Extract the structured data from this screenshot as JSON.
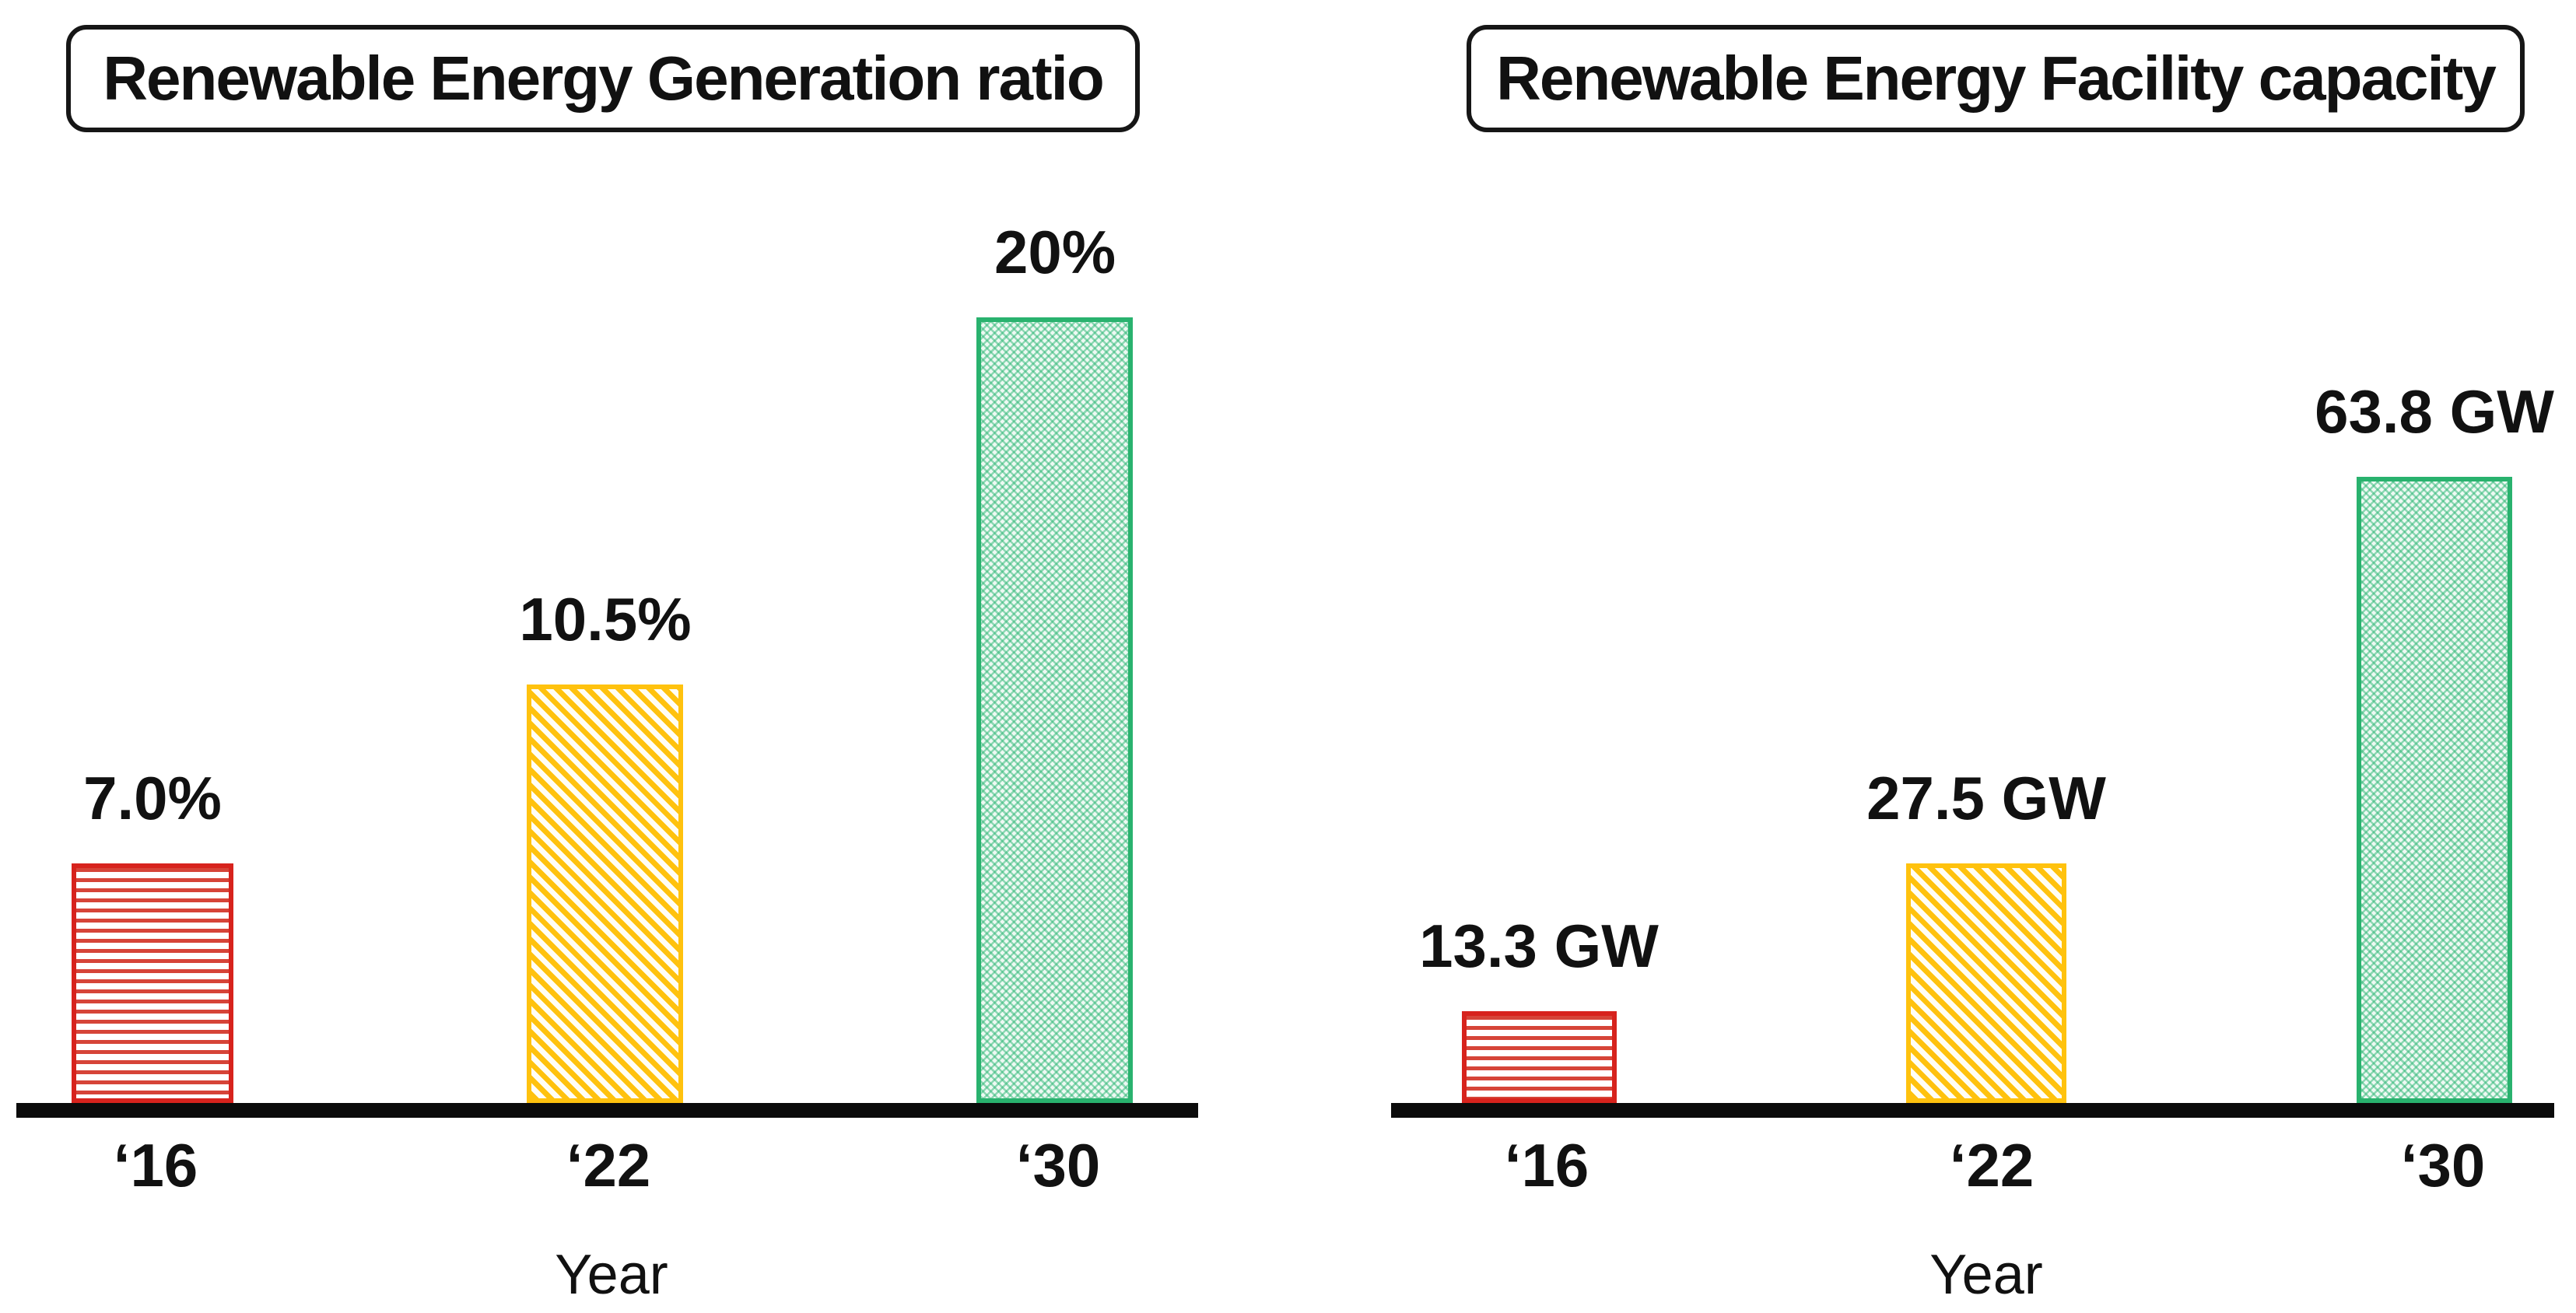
{
  "charts": [
    {
      "title": "Renewable Energy Generation ratio",
      "xlabel": "Year",
      "bars": [
        {
          "year": "‘16",
          "label": "7.0%",
          "value": 7.0
        },
        {
          "year": "‘22",
          "label": "10.5%",
          "value": 10.5
        },
        {
          "year": "‘30",
          "label": "20%",
          "value": 20
        }
      ]
    },
    {
      "title": "Renewable Energy Facility capacity",
      "xlabel": "Year",
      "bars": [
        {
          "year": "‘16",
          "label": "13.3 GW",
          "value": 13.3
        },
        {
          "year": "‘22",
          "label": "27.5 GW",
          "value": 27.5
        },
        {
          "year": "‘30",
          "label": "63.8 GW",
          "value": 63.8
        }
      ]
    }
  ],
  "colors": {
    "bar_2016_red": "#d7231d",
    "bar_2022_yellow": "#ffc20e",
    "bar_2030_green": "#29b26e",
    "axis_black": "#0b0b0b",
    "text": "#111111",
    "background": "#ffffff"
  },
  "chart_data": [
    {
      "type": "bar",
      "title": "Renewable Energy Generation ratio",
      "categories": [
        "‘16",
        "‘22",
        "‘30"
      ],
      "values": [
        7.0,
        10.5,
        20
      ],
      "data_labels": [
        "7.0%",
        "10.5%",
        "20%"
      ],
      "unit": "%",
      "xlabel": "Year",
      "ylabel": "",
      "ylim": [
        0,
        22
      ],
      "grid": false,
      "legend": false,
      "bar_colors": [
        "#d7231d",
        "#ffc20e",
        "#29b26e"
      ],
      "bar_patterns": [
        "horizontal-stripes",
        "diagonal-stripes",
        "dot-hatch"
      ]
    },
    {
      "type": "bar",
      "title": "Renewable Energy Facility capacity",
      "categories": [
        "‘16",
        "‘22",
        "‘30"
      ],
      "values": [
        13.3,
        27.5,
        63.8
      ],
      "data_labels": [
        "13.3 GW",
        "27.5 GW",
        "63.8 GW"
      ],
      "unit": "GW",
      "xlabel": "Year",
      "ylabel": "",
      "ylim": [
        0,
        70
      ],
      "grid": false,
      "legend": false,
      "bar_colors": [
        "#d7231d",
        "#ffc20e",
        "#29b26e"
      ],
      "bar_patterns": [
        "horizontal-stripes",
        "diagonal-stripes",
        "dot-hatch"
      ]
    }
  ]
}
